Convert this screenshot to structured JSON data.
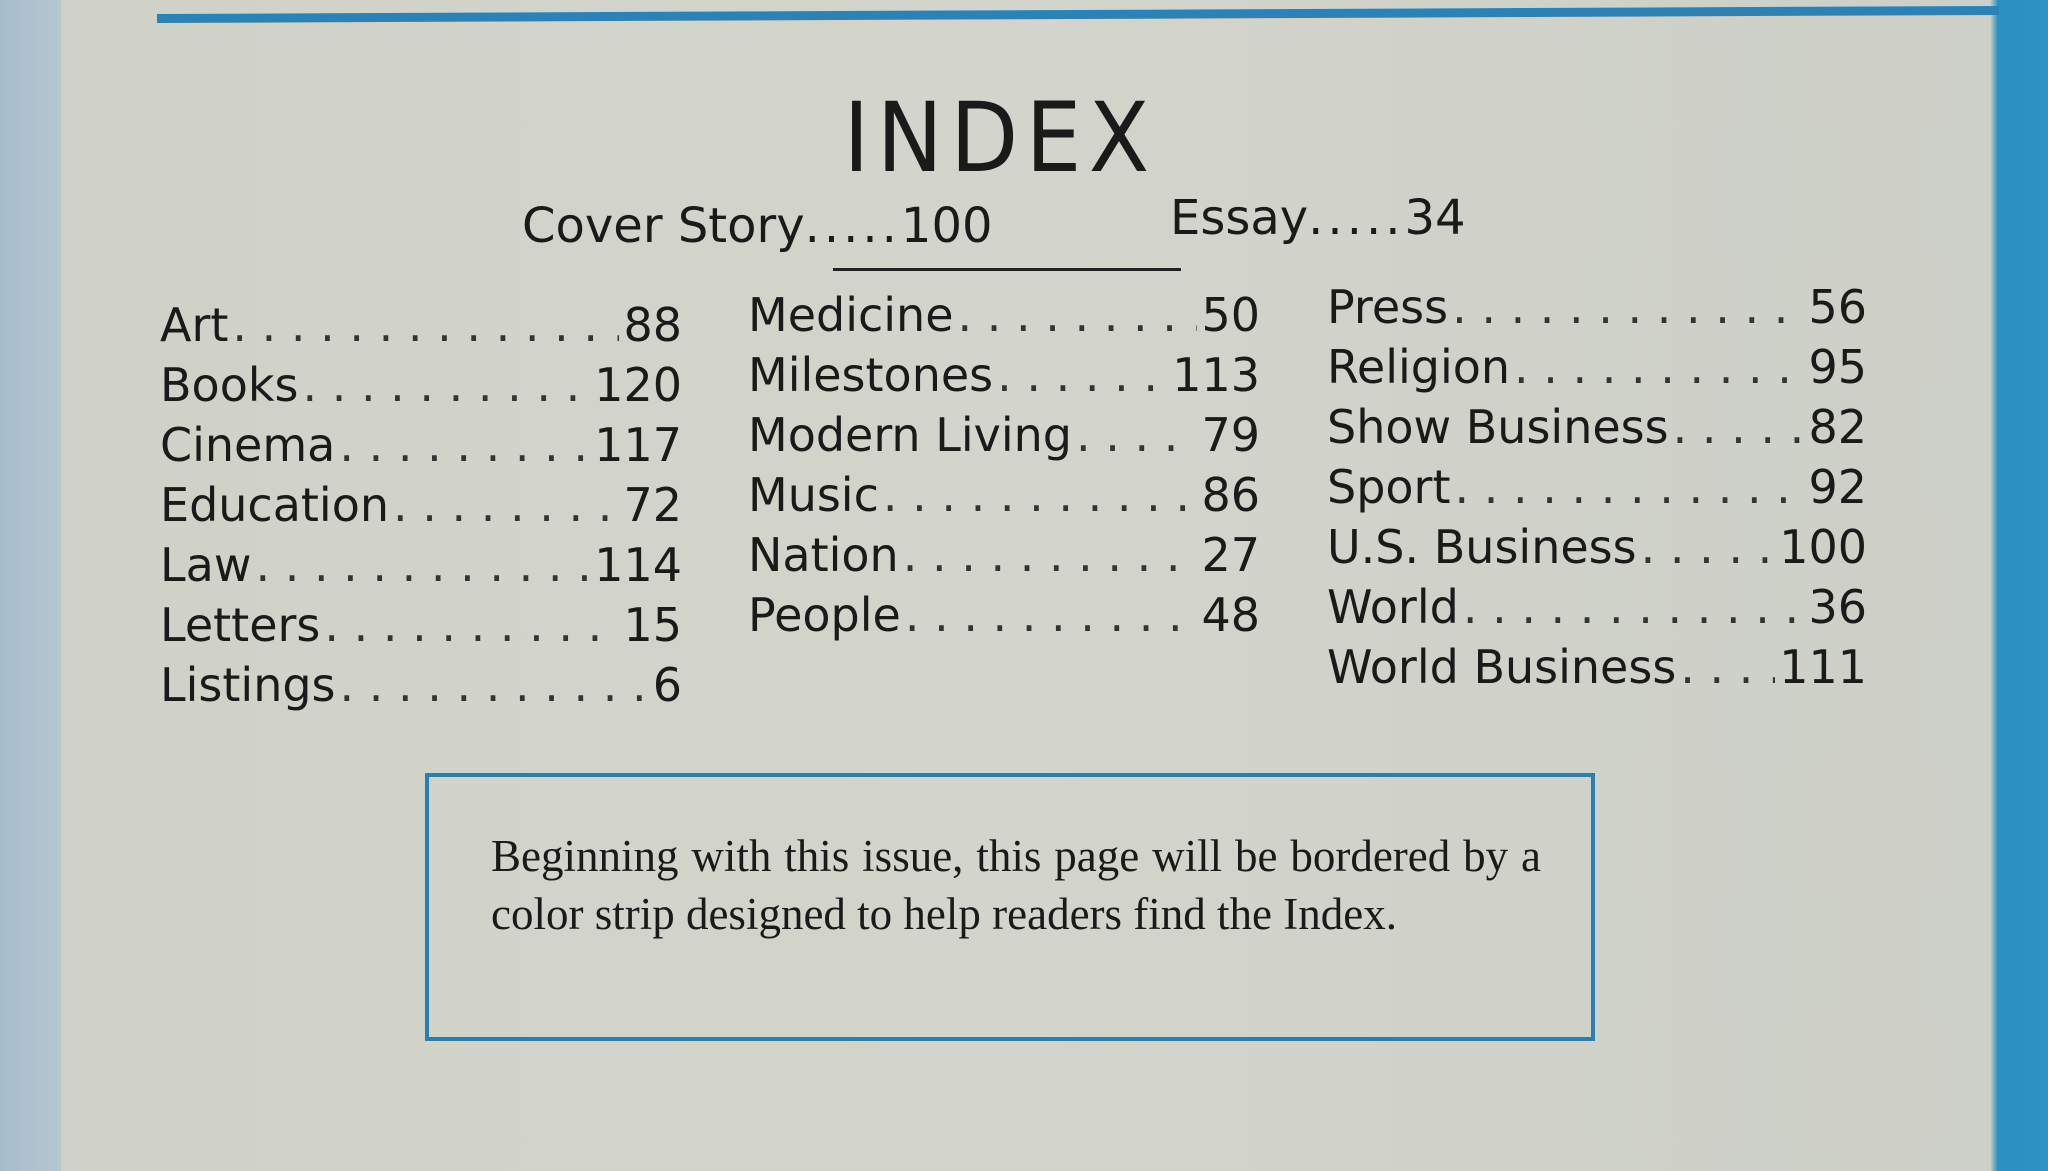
{
  "title": "INDEX",
  "features": [
    {
      "label": "Cover Story",
      "page": "100"
    },
    {
      "label": "Essay",
      "page": "34"
    }
  ],
  "columns": [
    [
      {
        "name": "Art",
        "page": "88"
      },
      {
        "name": "Books",
        "page": "120"
      },
      {
        "name": "Cinema",
        "page": "117"
      },
      {
        "name": "Education",
        "page": "72"
      },
      {
        "name": "Law",
        "page": "114"
      },
      {
        "name": "Letters",
        "page": "15"
      },
      {
        "name": "Listings",
        "page": "6"
      }
    ],
    [
      {
        "name": "Medicine",
        "page": "50"
      },
      {
        "name": "Milestones",
        "page": "113"
      },
      {
        "name": "Modern Living",
        "page": "79"
      },
      {
        "name": "Music",
        "page": "86"
      },
      {
        "name": "Nation",
        "page": "27"
      },
      {
        "name": "People",
        "page": "48"
      }
    ],
    [
      {
        "name": "Press",
        "page": "56"
      },
      {
        "name": "Religion",
        "page": "95"
      },
      {
        "name": "Show Business",
        "page": "82"
      },
      {
        "name": "Sport",
        "page": "92"
      },
      {
        "name": "U.S. Business",
        "page": "100"
      },
      {
        "name": "World",
        "page": "36"
      },
      {
        "name": "World Business",
        "page": "111"
      }
    ]
  ],
  "notice": "Beginning with this issue, this page will be bordered by a color strip designed to help readers find the Index.",
  "colors": {
    "strip": "#2a82b6",
    "paper": "#d3d4cb"
  }
}
